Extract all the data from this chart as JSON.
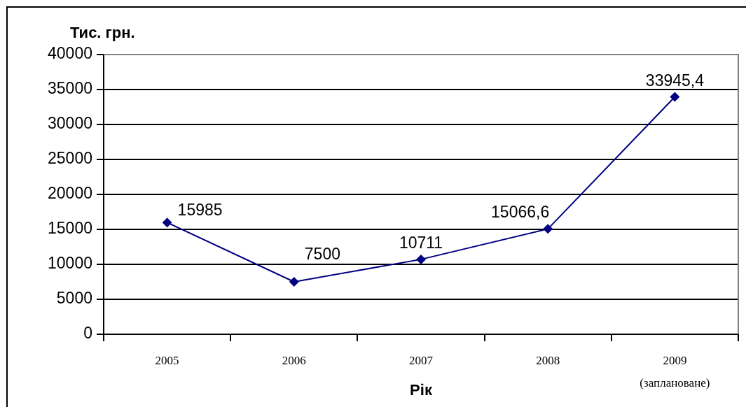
{
  "chart_data": {
    "type": "line",
    "ylabel": "Тис. грн.",
    "xlabel": "Рік",
    "categories": [
      "2005",
      "2006",
      "2007",
      "2008",
      "2009 (заплановане)"
    ],
    "values": [
      15985,
      7500,
      10711,
      15066.6,
      33945.4
    ],
    "value_labels": [
      "15985",
      "7500",
      "10711",
      "15066,6",
      "33945,4"
    ],
    "color": "#000080",
    "ylim": [
      0,
      40000
    ],
    "yticks": [
      0,
      5000,
      10000,
      15000,
      20000,
      25000,
      30000,
      35000,
      40000
    ],
    "grid": "y",
    "marker": "diamond",
    "line_style": "solid"
  }
}
